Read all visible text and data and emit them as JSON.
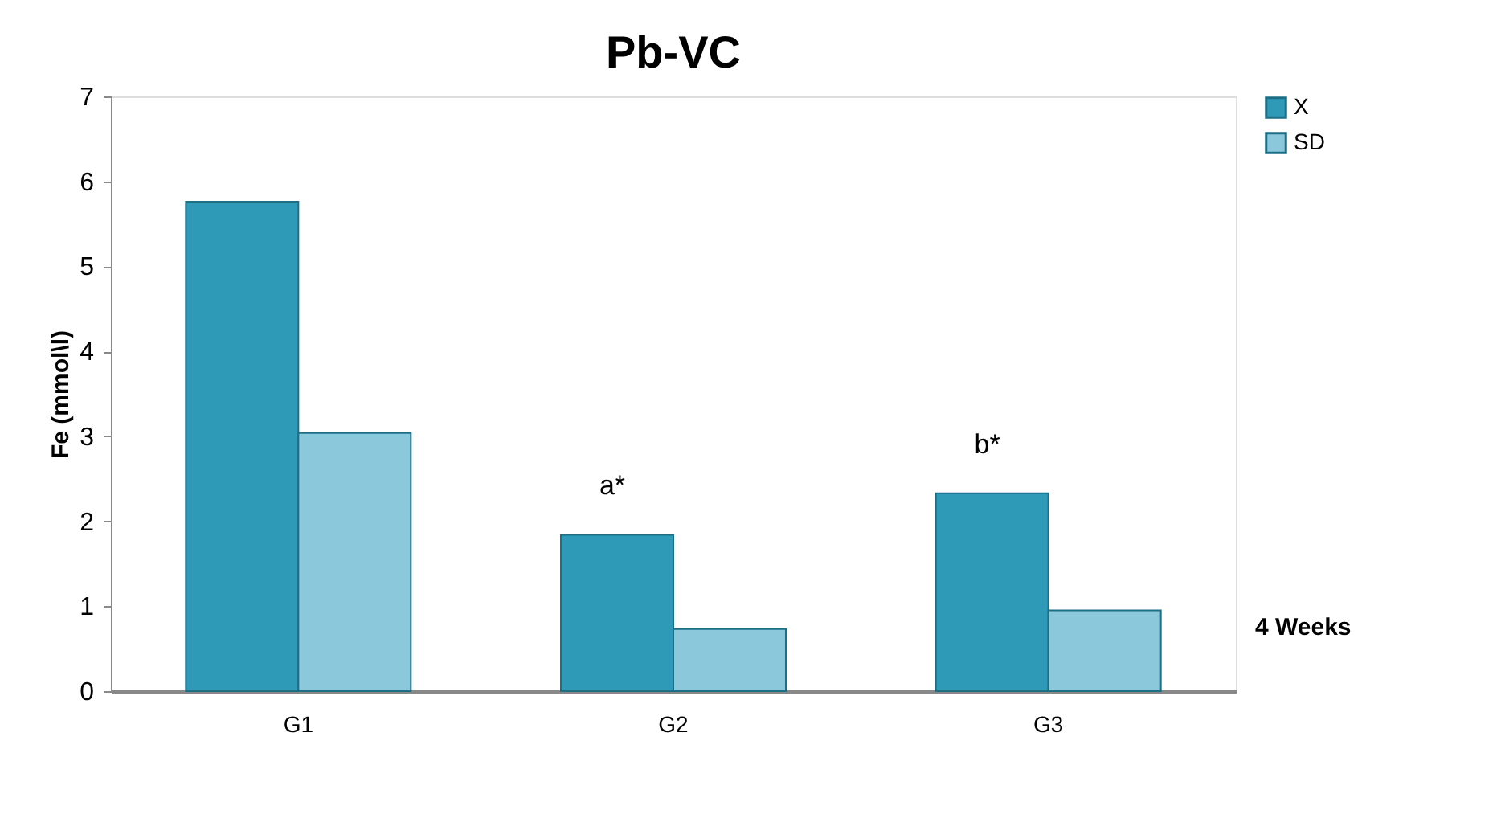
{
  "chart_data": {
    "type": "bar",
    "title": "Pb-VC",
    "ylabel": "Fe (mmol\\l)",
    "categories": [
      "G1",
      "G2",
      "G3"
    ],
    "series": [
      {
        "name": "X",
        "color": "#2e9ab8",
        "values": [
          5.76,
          1.84,
          2.33
        ]
      },
      {
        "name": "SD",
        "color": "#8cc8dc",
        "values": [
          3.04,
          0.73,
          0.95
        ]
      }
    ],
    "ylim": [
      0,
      7
    ],
    "yticks": [
      0,
      1,
      2,
      3,
      4,
      5,
      6,
      7
    ],
    "grid": false,
    "legend": "top right",
    "annotations": [
      {
        "text": "a*",
        "x": "G2",
        "y": 1.84
      },
      {
        "text": "b*",
        "x": "G3",
        "y": 2.33
      },
      "4 Weeks"
    ]
  }
}
